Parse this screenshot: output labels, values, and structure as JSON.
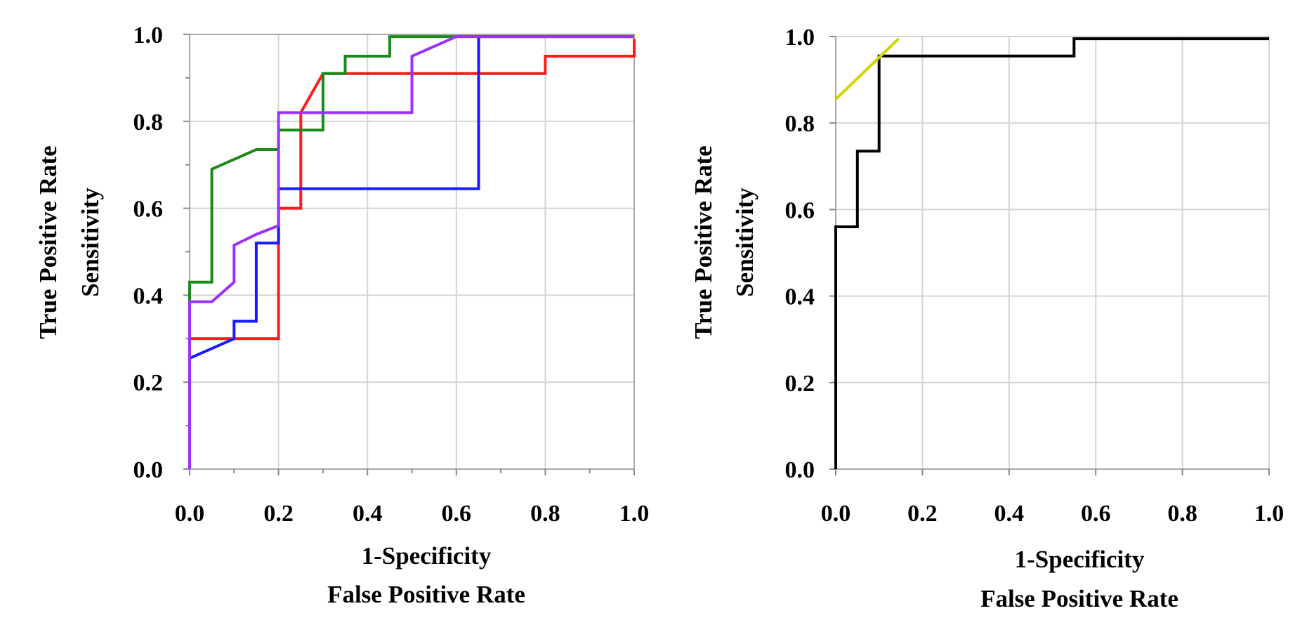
{
  "chart_data": [
    {
      "type": "line",
      "title": "",
      "xlabel_line1": "1-Specificity",
      "xlabel_line2": "False Positive Rate",
      "ylabel_line1": "True Positive Rate",
      "ylabel_line2": "Sensitivity",
      "xlim": [
        0,
        1
      ],
      "ylim": [
        0,
        1
      ],
      "grid": true,
      "x_ticks": [
        "0.0",
        "0.2",
        "0.4",
        "0.6",
        "0.8",
        "1.0"
      ],
      "y_ticks": [
        "0.0",
        "0.2",
        "0.4",
        "0.6",
        "0.8",
        "1.0"
      ],
      "series": [
        {
          "name": "red",
          "color": "#ff1a1a",
          "points": [
            [
              0,
              0
            ],
            [
              0,
              0.3
            ],
            [
              0.2,
              0.3
            ],
            [
              0.2,
              0.6
            ],
            [
              0.25,
              0.6
            ],
            [
              0.25,
              0.82
            ],
            [
              0.3,
              0.91
            ],
            [
              0.8,
              0.91
            ],
            [
              0.8,
              0.95
            ],
            [
              1,
              0.95
            ],
            [
              1,
              0.99
            ]
          ]
        },
        {
          "name": "green",
          "color": "#1a8a1a",
          "points": [
            [
              0,
              0
            ],
            [
              0,
              0.43
            ],
            [
              0.05,
              0.43
            ],
            [
              0.05,
              0.69
            ],
            [
              0.15,
              0.735
            ],
            [
              0.2,
              0.735
            ],
            [
              0.2,
              0.78
            ],
            [
              0.3,
              0.78
            ],
            [
              0.3,
              0.91
            ],
            [
              0.35,
              0.91
            ],
            [
              0.35,
              0.95
            ],
            [
              0.45,
              0.95
            ],
            [
              0.45,
              0.995
            ],
            [
              0.6,
              0.995
            ],
            [
              1,
              0.995
            ]
          ]
        },
        {
          "name": "blue",
          "color": "#1a1aff",
          "points": [
            [
              0,
              0
            ],
            [
              0,
              0.255
            ],
            [
              0.1,
              0.3
            ],
            [
              0.1,
              0.34
            ],
            [
              0.15,
              0.34
            ],
            [
              0.15,
              0.52
            ],
            [
              0.2,
              0.52
            ],
            [
              0.2,
              0.645
            ],
            [
              0.65,
              0.645
            ],
            [
              0.65,
              0.995
            ],
            [
              1,
              0.995
            ]
          ]
        },
        {
          "name": "purple",
          "color": "#9b30ff",
          "points": [
            [
              0,
              0
            ],
            [
              0,
              0.385
            ],
            [
              0.05,
              0.385
            ],
            [
              0.1,
              0.43
            ],
            [
              0.1,
              0.515
            ],
            [
              0.15,
              0.54
            ],
            [
              0.2,
              0.56
            ],
            [
              0.2,
              0.82
            ],
            [
              0.5,
              0.82
            ],
            [
              0.5,
              0.95
            ],
            [
              0.6,
              0.995
            ],
            [
              1,
              0.995
            ]
          ]
        }
      ]
    },
    {
      "type": "line",
      "title": "",
      "xlabel_line1": "1-Specificity",
      "xlabel_line2": "False Positive Rate",
      "ylabel_line1": "True Positive Rate",
      "ylabel_line2": "Sensitivity",
      "xlim": [
        0,
        1
      ],
      "ylim": [
        0,
        1
      ],
      "grid": true,
      "x_ticks": [
        "0.0",
        "0.2",
        "0.4",
        "0.6",
        "0.8",
        "1.0"
      ],
      "y_ticks": [
        "0.0",
        "0.2",
        "0.4",
        "0.6",
        "0.8",
        "1.0"
      ],
      "series": [
        {
          "name": "black",
          "color": "#000000",
          "points": [
            [
              0,
              0
            ],
            [
              0,
              0.56
            ],
            [
              0.05,
              0.56
            ],
            [
              0.05,
              0.735
            ],
            [
              0.1,
              0.735
            ],
            [
              0.1,
              0.955
            ],
            [
              0.55,
              0.955
            ],
            [
              0.55,
              0.995
            ],
            [
              1,
              0.995
            ]
          ]
        },
        {
          "name": "yellow",
          "color": "#d4d400",
          "points": [
            [
              0,
              0.855
            ],
            [
              0.145,
              0.995
            ]
          ]
        }
      ]
    }
  ]
}
